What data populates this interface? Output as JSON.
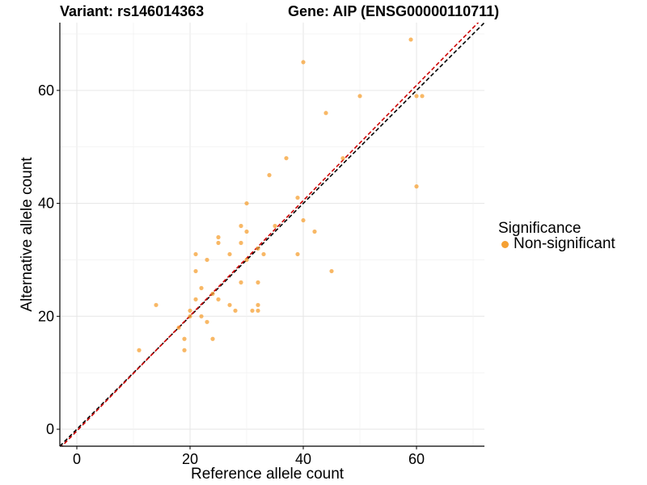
{
  "chart_data": {
    "type": "scatter",
    "title_left": "Variant: rs146014363",
    "title_right": "Gene: AIP (ENSG00000110711)",
    "xlabel": "Reference allele count",
    "ylabel": "Alternative allele count",
    "xlim": [
      -3,
      72
    ],
    "ylim": [
      -3,
      72
    ],
    "xticks": [
      0,
      20,
      40,
      60
    ],
    "yticks": [
      0,
      20,
      40,
      60
    ],
    "grid": true,
    "legend": {
      "title": "Significance",
      "placement": "right"
    },
    "series": [
      {
        "name": "Non-significant",
        "color": "#F5A033",
        "points": [
          [
            11,
            14
          ],
          [
            14,
            22
          ],
          [
            18,
            18
          ],
          [
            19,
            14
          ],
          [
            19,
            16
          ],
          [
            20,
            21
          ],
          [
            20,
            20
          ],
          [
            21,
            31
          ],
          [
            21,
            28
          ],
          [
            21,
            23
          ],
          [
            22,
            20
          ],
          [
            22,
            25
          ],
          [
            23,
            30
          ],
          [
            23,
            19
          ],
          [
            24,
            16
          ],
          [
            24,
            24
          ],
          [
            25,
            34
          ],
          [
            25,
            33
          ],
          [
            25,
            23
          ],
          [
            27,
            31
          ],
          [
            27,
            22
          ],
          [
            28,
            21
          ],
          [
            29,
            36
          ],
          [
            29,
            33
          ],
          [
            29,
            26
          ],
          [
            30,
            40
          ],
          [
            30,
            35
          ],
          [
            30,
            30
          ],
          [
            31,
            21
          ],
          [
            32,
            32
          ],
          [
            32,
            26
          ],
          [
            32,
            22
          ],
          [
            32,
            21
          ],
          [
            33,
            31
          ],
          [
            34,
            45
          ],
          [
            35,
            36
          ],
          [
            37,
            48
          ],
          [
            39,
            41
          ],
          [
            39,
            31
          ],
          [
            40,
            65
          ],
          [
            40,
            37
          ],
          [
            42,
            35
          ],
          [
            44,
            56
          ],
          [
            45,
            28
          ],
          [
            47,
            48
          ],
          [
            50,
            59
          ],
          [
            59,
            69
          ],
          [
            60,
            59
          ],
          [
            60,
            43
          ],
          [
            61,
            59
          ]
        ]
      }
    ],
    "reference_lines": [
      {
        "kind": "identity",
        "style": "dashed",
        "color": "#000000"
      },
      {
        "kind": "fit",
        "style": "dashed",
        "color": "#CC0000",
        "slope": 1.02,
        "intercept": -0.3
      }
    ]
  }
}
